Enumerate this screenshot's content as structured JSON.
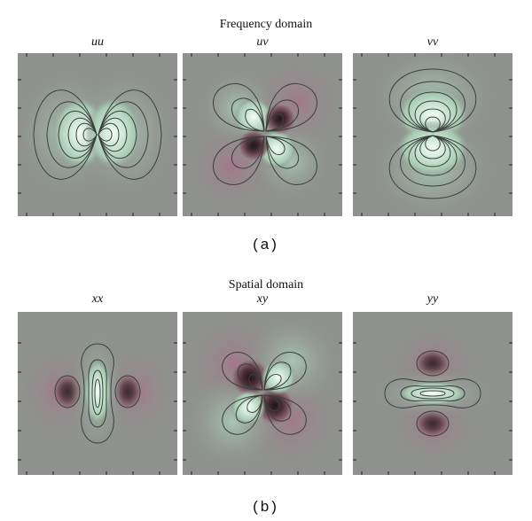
{
  "top": {
    "title": "Frequency domain",
    "panels": [
      {
        "label": "uu",
        "pattern": "two-lobes-horizontal"
      },
      {
        "label": "uv",
        "pattern": "four-lobes"
      },
      {
        "label": "vv",
        "pattern": "two-lobes-vertical"
      }
    ],
    "caption": "(a)"
  },
  "bottom": {
    "title": "Spatial domain",
    "panels": [
      {
        "label": "xx",
        "pattern": "center-vertical-with-side-lobes"
      },
      {
        "label": "xy",
        "pattern": "four-lobes"
      },
      {
        "label": "yy",
        "pattern": "center-horizontal-with-top-bottom-lobes"
      }
    ],
    "caption": "(b)"
  },
  "colors": {
    "background": "#8f928f",
    "positive": "#e6f6ec",
    "positive_mid": "#a9d3b8",
    "negative": "#2a1a1e",
    "negative_mid": "#8a5a6a",
    "pink_halo": "#a58893",
    "contour": "#3a3f3a"
  }
}
